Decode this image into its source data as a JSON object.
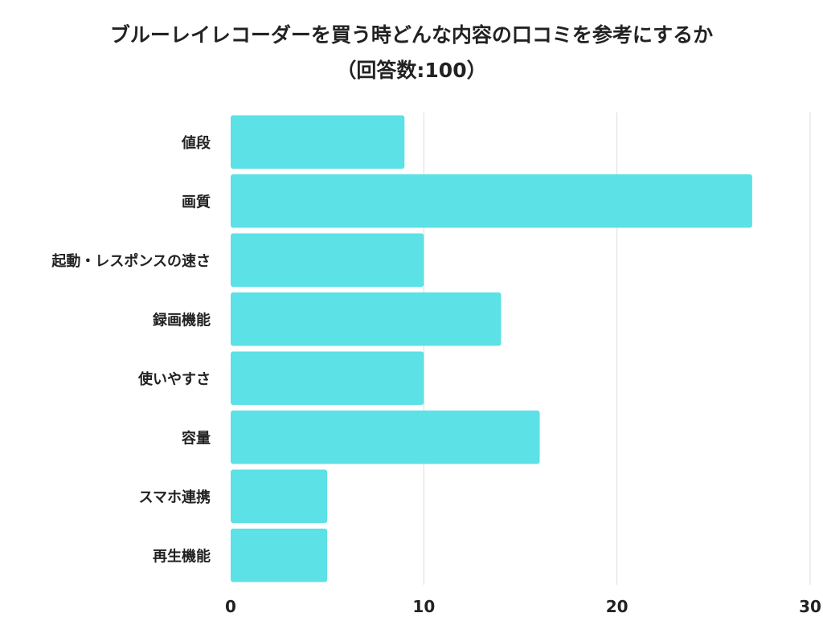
{
  "title_line1": "ブルーレイレコーダーを買う時どんな内容の口コミを参考にするか",
  "title_line2": "（回答数:100）",
  "chart_data": {
    "type": "bar",
    "orientation": "horizontal",
    "title": "ブルーレイレコーダーを買う時どんな内容の口コミを参考にするか（回答数:100）",
    "categories": [
      "値段",
      "画質",
      "起動・レスポンスの速さ",
      "録画機能",
      "使いやすさ",
      "容量",
      "スマホ連携",
      "再生機能"
    ],
    "values": [
      9,
      27,
      10,
      14,
      10,
      16,
      5,
      5
    ],
    "xlim": [
      0,
      30
    ],
    "xticks": [
      0,
      10,
      20,
      30
    ],
    "grid": true,
    "bar_color": "#5ce1e6"
  }
}
